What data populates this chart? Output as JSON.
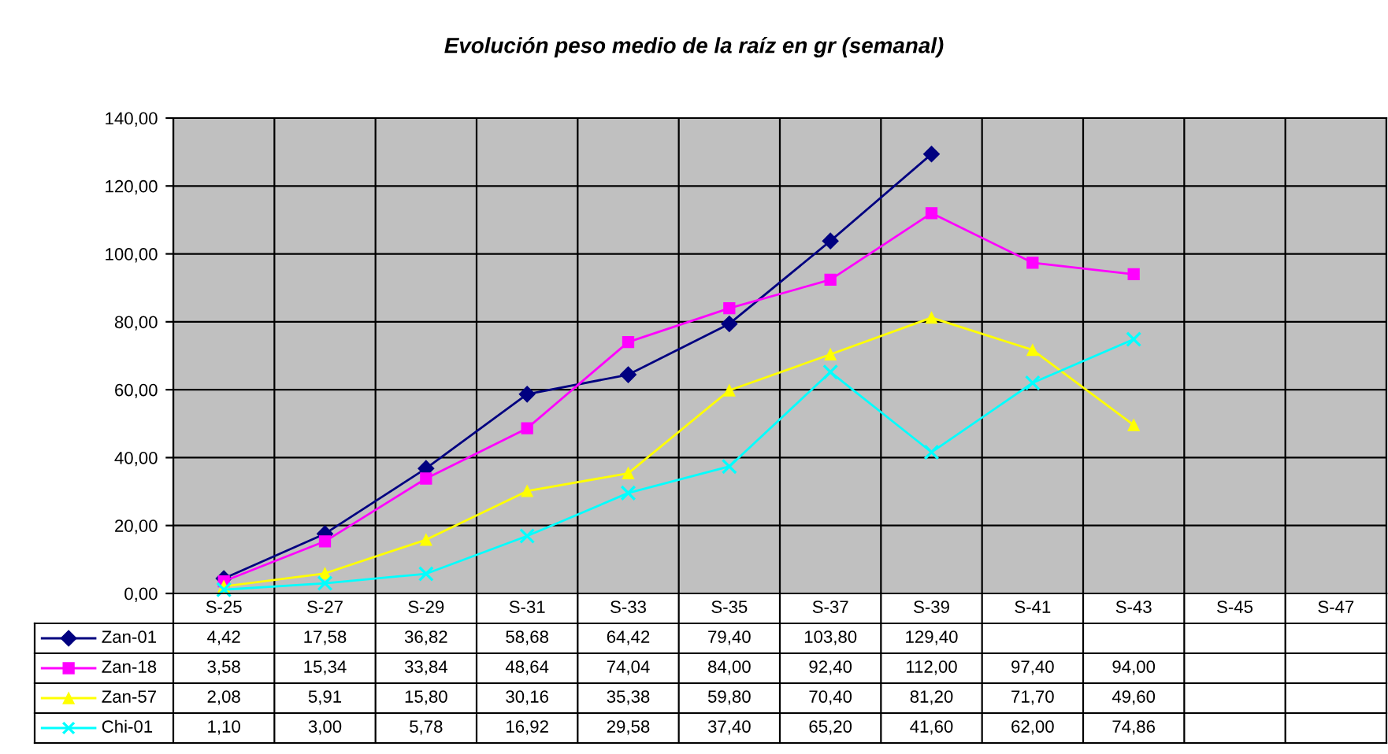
{
  "chart_data": {
    "type": "line",
    "title": "Evolución peso medio de la raíz en gr (semanal)",
    "categories": [
      "S-25",
      "S-27",
      "S-29",
      "S-31",
      "S-33",
      "S-35",
      "S-37",
      "S-39",
      "S-41",
      "S-43",
      "S-45",
      "S-47"
    ],
    "series": [
      {
        "name": "Zan-01",
        "color": "#000080",
        "marker": "diamond",
        "values": [
          4.42,
          17.58,
          36.82,
          58.68,
          64.42,
          79.4,
          103.8,
          129.4,
          null,
          null,
          null,
          null
        ],
        "value_labels": [
          "4,42",
          "17,58",
          "36,82",
          "58,68",
          "64,42",
          "79,40",
          "103,80",
          "129,40",
          null,
          null,
          null,
          null
        ]
      },
      {
        "name": "Zan-18",
        "color": "#ff00ff",
        "marker": "square",
        "values": [
          3.58,
          15.34,
          33.84,
          48.64,
          74.04,
          84.0,
          92.4,
          112.0,
          97.4,
          94.0,
          null,
          null
        ],
        "value_labels": [
          "3,58",
          "15,34",
          "33,84",
          "48,64",
          "74,04",
          "84,00",
          "92,40",
          "112,00",
          "97,40",
          "94,00",
          null,
          null
        ]
      },
      {
        "name": "Zan-57",
        "color": "#ffff00",
        "marker": "triangle",
        "values": [
          2.08,
          5.91,
          15.8,
          30.16,
          35.38,
          59.8,
          70.4,
          81.2,
          71.7,
          49.6,
          null,
          null
        ],
        "value_labels": [
          "2,08",
          "5,91",
          "15,80",
          "30,16",
          "35,38",
          "59,80",
          "70,40",
          "81,20",
          "71,70",
          "49,60",
          null,
          null
        ]
      },
      {
        "name": "Chi-01",
        "color": "#00ffff",
        "marker": "cross",
        "values": [
          1.1,
          3.0,
          5.78,
          16.92,
          29.58,
          37.4,
          65.2,
          41.6,
          62.0,
          74.86,
          null,
          null
        ],
        "value_labels": [
          "1,10",
          "3,00",
          "5,78",
          "16,92",
          "29,58",
          "37,40",
          "65,20",
          "41,60",
          "62,00",
          "74,86",
          null,
          null
        ]
      }
    ],
    "ylim": [
      0,
      140
    ],
    "yticks": [
      {
        "value": 0,
        "label": "0,00"
      },
      {
        "value": 20,
        "label": "20,00"
      },
      {
        "value": 40,
        "label": "40,00"
      },
      {
        "value": 60,
        "label": "60,00"
      },
      {
        "value": 80,
        "label": "80,00"
      },
      {
        "value": 100,
        "label": "100,00"
      },
      {
        "value": 120,
        "label": "120,00"
      },
      {
        "value": 140,
        "label": "140,00"
      }
    ],
    "grid": true,
    "legend": "bottom left"
  }
}
